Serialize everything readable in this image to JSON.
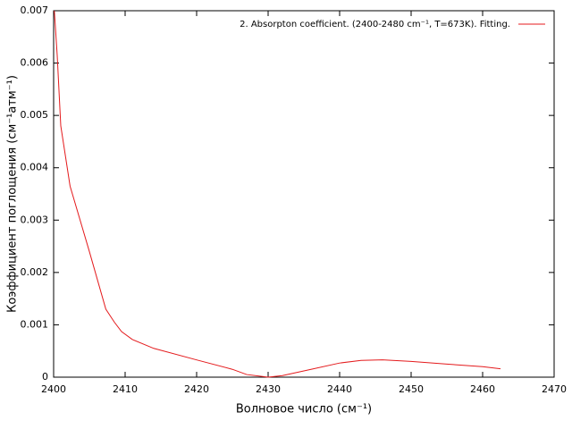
{
  "chart_data": {
    "type": "line",
    "xlabel": "Волновое число (см⁻¹)",
    "ylabel": "Коэффициент поглощения (см⁻¹атм⁻¹)",
    "x": [
      2400.1,
      2400.5,
      2401,
      2402.3,
      2405,
      2407.3,
      2408.5,
      2409.5,
      2411,
      2414,
      2420,
      2425,
      2427,
      2430,
      2432,
      2436,
      2440,
      2443,
      2446,
      2450,
      2455,
      2460,
      2462.5
    ],
    "series": [
      {
        "name": "2. Absorpton coefficient. (2400-2480 cm⁻¹, T=673K). Fitting.",
        "color": "#e41a1c",
        "values": [
          0.007,
          0.00615,
          0.0048,
          0.00365,
          0.0024,
          0.0013,
          0.00105,
          0.00087,
          0.00072,
          0.00055,
          0.00033,
          0.00015,
          5e-05,
          0.0,
          3e-05,
          0.00015,
          0.00027,
          0.00032,
          0.00033,
          0.0003,
          0.00025,
          0.0002,
          0.00016
        ]
      }
    ],
    "xlim": [
      2400,
      2470
    ],
    "xticks": [
      2400,
      2410,
      2420,
      2430,
      2440,
      2450,
      2460,
      2470
    ],
    "ylim": [
      0,
      0.007
    ],
    "yticks": [
      0,
      0.001,
      0.002,
      0.003,
      0.004,
      0.005,
      0.006,
      0.007
    ],
    "legend": "upper right"
  }
}
